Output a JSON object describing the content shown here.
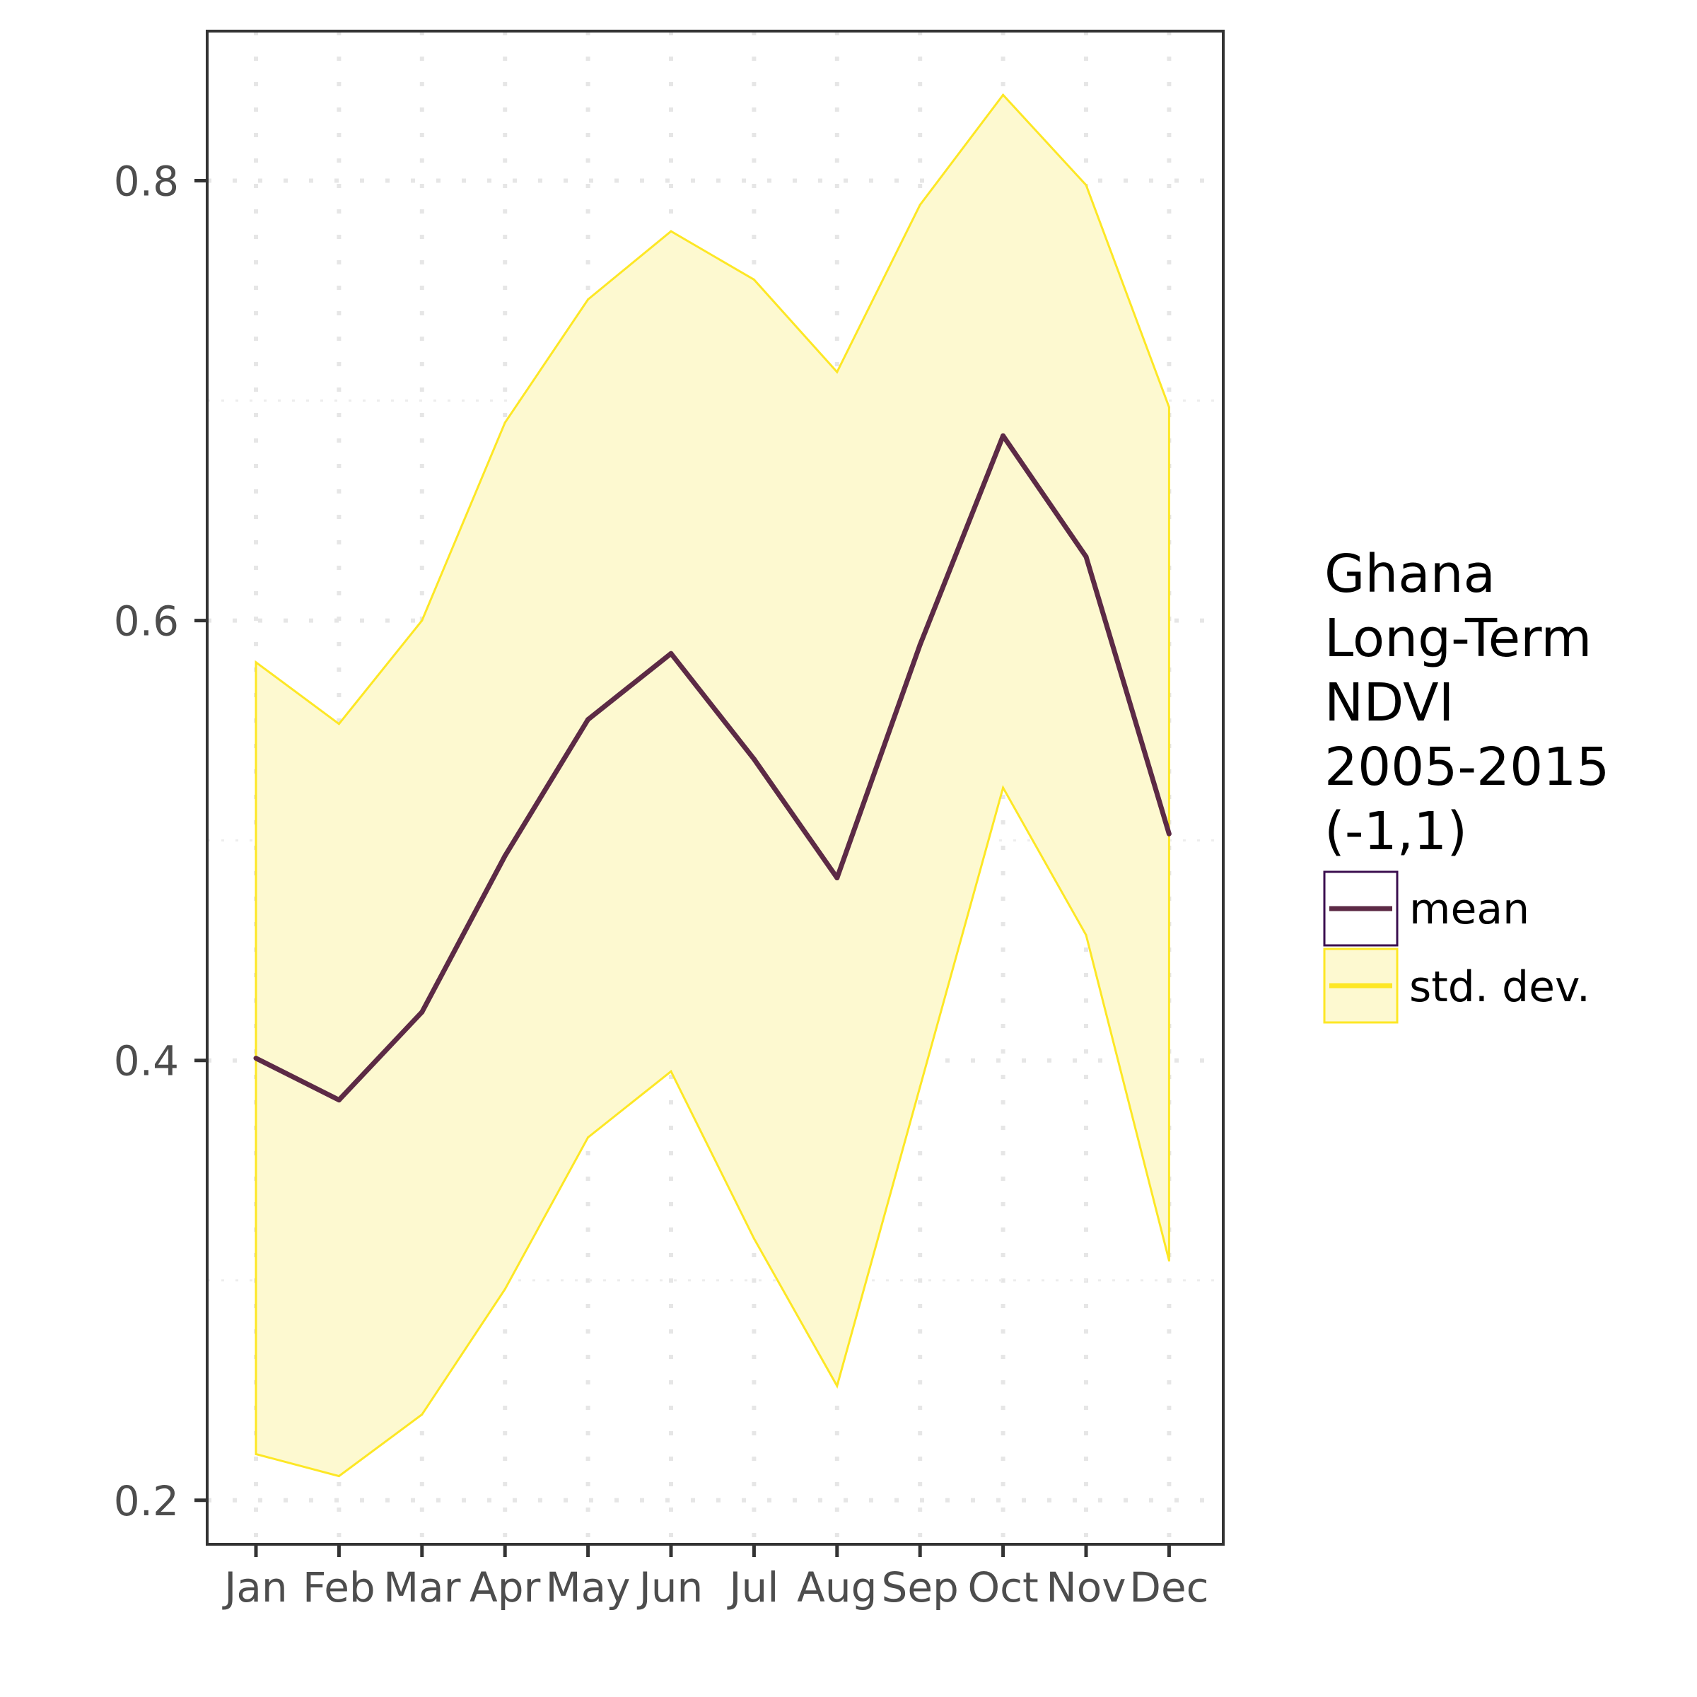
{
  "chart_data": {
    "type": "area",
    "title": "",
    "xlabel": "",
    "ylabel": "",
    "categories": [
      "Jan",
      "Feb",
      "Mar",
      "Apr",
      "May",
      "Jun",
      "Jul",
      "Aug",
      "Sep",
      "Oct",
      "Nov",
      "Dec"
    ],
    "y_ticks": [
      "0.2",
      "0.4",
      "0.6",
      "0.8"
    ],
    "ylim": [
      0.18,
      0.868
    ],
    "grid": true,
    "legend_position": "right",
    "legend_title_lines": [
      "Ghana",
      "Long-Term",
      "NDVI",
      "2005-2015",
      "(-1,1)"
    ],
    "series": [
      {
        "name": "mean",
        "color": "#5c2a45",
        "values": [
          0.401,
          0.382,
          0.422,
          0.493,
          0.555,
          0.585,
          0.537,
          0.483,
          0.589,
          0.684,
          0.629,
          0.503
        ]
      },
      {
        "name": "std. dev.",
        "color": "#fde725",
        "fill": "#fdf9d0",
        "upper": [
          0.581,
          0.553,
          0.6,
          0.69,
          0.746,
          0.777,
          0.755,
          0.713,
          0.789,
          0.839,
          0.798,
          0.697
        ],
        "lower": [
          0.221,
          0.211,
          0.239,
          0.296,
          0.365,
          0.395,
          0.319,
          0.252,
          0.388,
          0.524,
          0.457,
          0.309
        ]
      }
    ]
  }
}
